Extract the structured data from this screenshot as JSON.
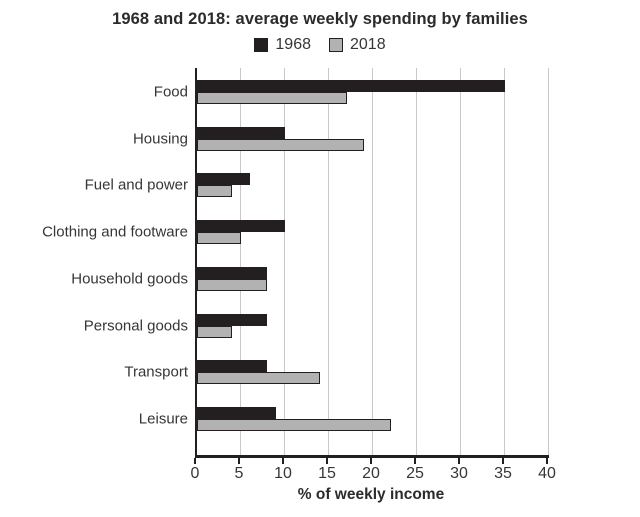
{
  "title": "1968 and 2018: average weekly spending by families",
  "legend": {
    "items": [
      {
        "label": "1968",
        "color": "#231f20"
      },
      {
        "label": "2018",
        "color": "#b2b2b2"
      }
    ]
  },
  "colors": {
    "series_1968": "#231f20",
    "series_2018": "#b2b2b2",
    "axis": "#231f20",
    "gridline": "#c8c8c8",
    "text": "#363636"
  },
  "chart_data": {
    "type": "bar",
    "orientation": "horizontal",
    "title": "1968 and 2018: average weekly spending by families",
    "categories": [
      "Food",
      "Housing",
      "Fuel and power",
      "Clothing and footware",
      "Household goods",
      "Personal goods",
      "Transport",
      "Leisure"
    ],
    "series": [
      {
        "name": "1968",
        "color": "#231f20",
        "values": [
          35,
          10,
          6,
          10,
          8,
          8,
          8,
          9
        ]
      },
      {
        "name": "2018",
        "color": "#b2b2b2",
        "values": [
          17,
          19,
          4,
          5,
          8,
          4,
          14,
          22
        ]
      }
    ],
    "xlabel": "% of weekly income",
    "xlim": [
      0,
      40
    ],
    "xticks": [
      0,
      5,
      10,
      15,
      20,
      25,
      30,
      35,
      40
    ],
    "grid": true,
    "legend_position": "top"
  }
}
